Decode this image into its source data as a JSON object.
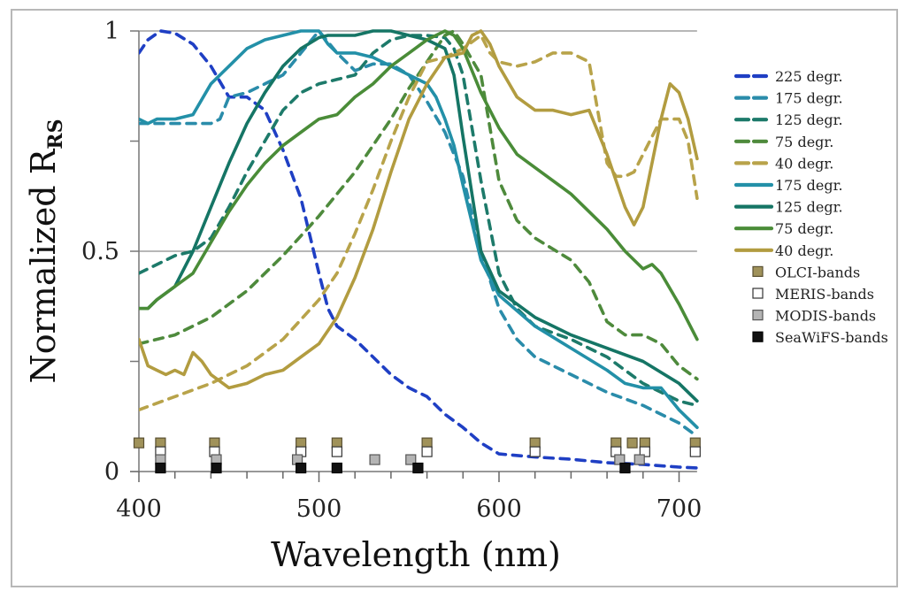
{
  "chart_data": {
    "type": "line",
    "title": "",
    "xlabel": "Wavelength (nm)",
    "ylabel": "Normalized R",
    "ylabel_subscript": "RS",
    "xlim": [
      400,
      710
    ],
    "ylim": [
      0,
      1
    ],
    "xticks": [
      400,
      500,
      600,
      700
    ],
    "xtick_labels": [
      "400",
      "500",
      "600",
      "700"
    ],
    "x_minor_step": 20,
    "yticks": [
      0,
      0.5,
      1
    ],
    "ytick_labels": [
      "0",
      "0.5",
      "1"
    ],
    "y_minor_ticks": [
      0.25,
      0.75
    ],
    "grid": "horizontal at 0.5 and 1",
    "legend_position": "right",
    "series": [
      {
        "name": "225 degr.",
        "style": "dashed",
        "color": "#1f3fc4",
        "x": [
          400,
          405,
          412,
          420,
          430,
          440,
          450,
          460,
          470,
          480,
          490,
          500,
          505,
          510,
          520,
          530,
          540,
          550,
          560,
          570,
          580,
          590,
          600,
          620,
          640,
          660,
          680,
          700,
          710
        ],
        "y": [
          0.95,
          0.98,
          1.0,
          0.995,
          0.97,
          0.92,
          0.85,
          0.85,
          0.82,
          0.73,
          0.62,
          0.45,
          0.37,
          0.33,
          0.3,
          0.26,
          0.22,
          0.19,
          0.17,
          0.13,
          0.1,
          0.065,
          0.04,
          0.033,
          0.028,
          0.02,
          0.016,
          0.01,
          0.008
        ]
      },
      {
        "name": "175 degr.",
        "style": "dashed",
        "color": "#2a8caa",
        "x": [
          400,
          410,
          420,
          430,
          440,
          445,
          450,
          460,
          470,
          480,
          490,
          500,
          510,
          520,
          530,
          540,
          550,
          560,
          570,
          580,
          590,
          600,
          610,
          620,
          640,
          660,
          680,
          700,
          710
        ],
        "y": [
          0.79,
          0.79,
          0.79,
          0.79,
          0.79,
          0.8,
          0.85,
          0.86,
          0.88,
          0.9,
          0.95,
          1.0,
          0.95,
          0.91,
          0.925,
          0.925,
          0.9,
          0.84,
          0.77,
          0.67,
          0.5,
          0.37,
          0.3,
          0.26,
          0.22,
          0.18,
          0.15,
          0.11,
          0.08
        ]
      },
      {
        "name": "125 degr.",
        "style": "dashed",
        "color": "#1d7a6a",
        "x": [
          400,
          420,
          430,
          440,
          450,
          460,
          470,
          480,
          490,
          500,
          510,
          520,
          530,
          540,
          550,
          560,
          570,
          575,
          580,
          590,
          600,
          610,
          620,
          640,
          660,
          680,
          700,
          710
        ],
        "y": [
          0.45,
          0.49,
          0.5,
          0.53,
          0.6,
          0.68,
          0.75,
          0.82,
          0.86,
          0.88,
          0.89,
          0.9,
          0.95,
          0.98,
          0.99,
          0.99,
          0.985,
          0.96,
          0.9,
          0.66,
          0.45,
          0.37,
          0.33,
          0.3,
          0.26,
          0.2,
          0.16,
          0.15
        ]
      },
      {
        "name": "75 degr.",
        "style": "dashed",
        "color": "#4e8a3c",
        "x": [
          400,
          420,
          440,
          460,
          480,
          500,
          520,
          540,
          550,
          560,
          570,
          575,
          580,
          590,
          600,
          610,
          620,
          640,
          650,
          660,
          670,
          680,
          690,
          700,
          710
        ],
        "y": [
          0.29,
          0.31,
          0.35,
          0.41,
          0.49,
          0.58,
          0.68,
          0.8,
          0.87,
          0.93,
          0.99,
          1.0,
          0.97,
          0.9,
          0.66,
          0.57,
          0.53,
          0.48,
          0.43,
          0.34,
          0.31,
          0.31,
          0.29,
          0.24,
          0.21
        ]
      },
      {
        "name": "40 degr.",
        "style": "dashed",
        "color": "#b8a34a",
        "x": [
          400,
          420,
          440,
          460,
          480,
          500,
          510,
          520,
          530,
          540,
          550,
          560,
          570,
          580,
          590,
          595,
          600,
          610,
          620,
          630,
          640,
          650,
          660,
          665,
          670,
          675,
          680,
          690,
          700,
          705,
          710
        ],
        "y": [
          0.14,
          0.17,
          0.2,
          0.24,
          0.3,
          0.39,
          0.45,
          0.54,
          0.64,
          0.75,
          0.85,
          0.93,
          0.94,
          0.96,
          0.99,
          0.95,
          0.93,
          0.92,
          0.93,
          0.95,
          0.95,
          0.93,
          0.7,
          0.67,
          0.67,
          0.68,
          0.72,
          0.8,
          0.8,
          0.75,
          0.62
        ]
      },
      {
        "name": "175 degr.",
        "style": "solid",
        "color": "#2390a8",
        "x": [
          400,
          405,
          410,
          420,
          430,
          440,
          450,
          460,
          470,
          480,
          490,
          500,
          505,
          510,
          520,
          530,
          540,
          550,
          560,
          565,
          570,
          575,
          580,
          590,
          600,
          620,
          640,
          660,
          670,
          680,
          690,
          700,
          710
        ],
        "y": [
          0.8,
          0.79,
          0.8,
          0.8,
          0.81,
          0.88,
          0.92,
          0.96,
          0.98,
          0.99,
          1.0,
          1.0,
          0.97,
          0.95,
          0.95,
          0.94,
          0.92,
          0.9,
          0.88,
          0.85,
          0.8,
          0.74,
          0.65,
          0.48,
          0.4,
          0.33,
          0.28,
          0.23,
          0.2,
          0.19,
          0.19,
          0.14,
          0.1
        ]
      },
      {
        "name": "125 degr.",
        "style": "solid",
        "color": "#157565",
        "x": [
          400,
          405,
          410,
          420,
          430,
          440,
          450,
          460,
          470,
          480,
          490,
          500,
          505,
          510,
          520,
          530,
          540,
          550,
          560,
          570,
          575,
          580,
          590,
          600,
          620,
          640,
          660,
          680,
          700,
          710
        ],
        "y": [
          0.37,
          0.37,
          0.39,
          0.42,
          0.5,
          0.6,
          0.7,
          0.79,
          0.86,
          0.92,
          0.96,
          0.985,
          0.99,
          0.99,
          0.99,
          1.0,
          1.0,
          0.99,
          0.98,
          0.96,
          0.9,
          0.76,
          0.5,
          0.41,
          0.35,
          0.31,
          0.28,
          0.25,
          0.2,
          0.16
        ]
      },
      {
        "name": "75 degr.",
        "style": "solid",
        "color": "#4a8c38",
        "x": [
          400,
          405,
          410,
          420,
          430,
          440,
          450,
          460,
          470,
          480,
          490,
          500,
          510,
          520,
          530,
          540,
          550,
          560,
          570,
          575,
          580,
          590,
          600,
          610,
          620,
          640,
          660,
          670,
          680,
          685,
          690,
          700,
          710
        ],
        "y": [
          0.37,
          0.37,
          0.39,
          0.42,
          0.45,
          0.52,
          0.59,
          0.65,
          0.7,
          0.74,
          0.77,
          0.8,
          0.81,
          0.85,
          0.88,
          0.92,
          0.95,
          0.98,
          1.0,
          0.99,
          0.96,
          0.86,
          0.78,
          0.72,
          0.69,
          0.63,
          0.55,
          0.5,
          0.46,
          0.47,
          0.45,
          0.38,
          0.3
        ]
      },
      {
        "name": "40 degr.",
        "style": "solid",
        "color": "#b29c40",
        "x": [
          400,
          405,
          410,
          415,
          420,
          425,
          430,
          435,
          440,
          450,
          460,
          470,
          480,
          490,
          500,
          510,
          520,
          530,
          540,
          550,
          560,
          570,
          580,
          585,
          590,
          595,
          600,
          610,
          620,
          630,
          640,
          650,
          660,
          670,
          675,
          680,
          690,
          695,
          700,
          705,
          710
        ],
        "y": [
          0.3,
          0.24,
          0.23,
          0.22,
          0.23,
          0.22,
          0.27,
          0.25,
          0.22,
          0.19,
          0.2,
          0.22,
          0.23,
          0.26,
          0.29,
          0.35,
          0.44,
          0.55,
          0.68,
          0.8,
          0.88,
          0.94,
          0.95,
          0.99,
          1.0,
          0.97,
          0.92,
          0.85,
          0.82,
          0.82,
          0.81,
          0.82,
          0.72,
          0.6,
          0.56,
          0.6,
          0.8,
          0.88,
          0.86,
          0.8,
          0.71
        ]
      }
    ],
    "markers": [
      {
        "name": "OLCI-bands",
        "fill": "#a0925a",
        "stroke": "#5a5032",
        "y": 0.065,
        "x": [
          400,
          412,
          442,
          490,
          510,
          560,
          620,
          665,
          674,
          681,
          709
        ]
      },
      {
        "name": "MERIS-bands",
        "fill": "#ffffff",
        "stroke": "#333333",
        "y": 0.045,
        "x": [
          412,
          442,
          490,
          510,
          560,
          620,
          665,
          681,
          709
        ]
      },
      {
        "name": "MODIS-bands",
        "fill": "#b4b4b4",
        "stroke": "#555555",
        "y": 0.027,
        "x": [
          412,
          443,
          488,
          531,
          551,
          667,
          678
        ]
      },
      {
        "name": "SeaWiFS-bands",
        "fill": "#111111",
        "stroke": "#000000",
        "y": 0.008,
        "x": [
          412,
          443,
          490,
          510,
          555,
          670
        ]
      }
    ]
  }
}
